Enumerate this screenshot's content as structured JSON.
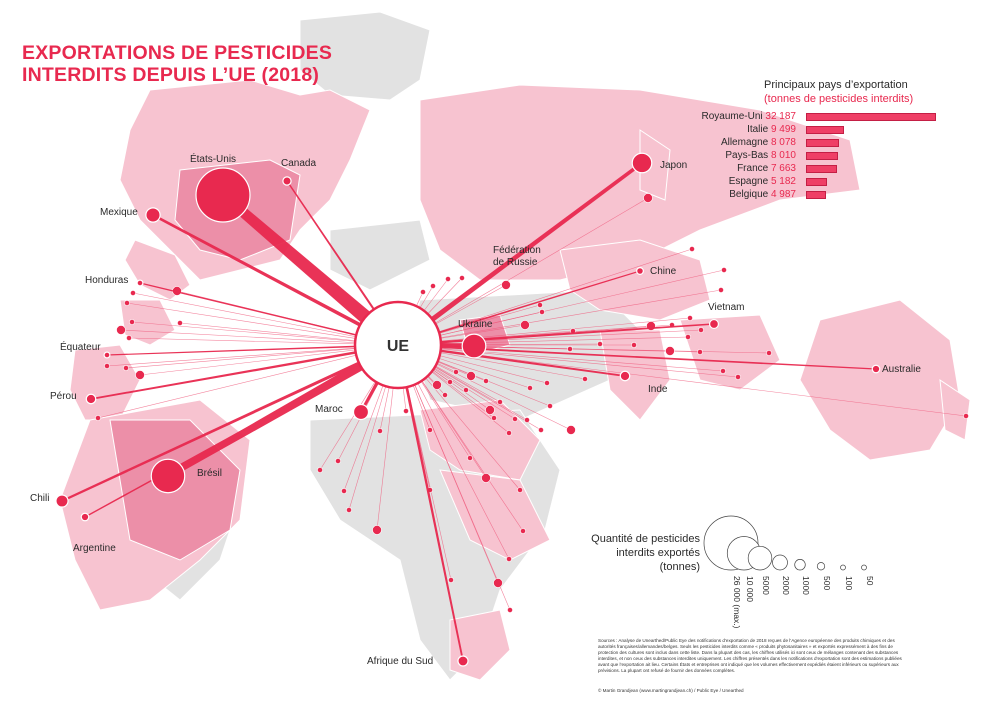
{
  "title": {
    "line1": "EXPORTATIONS DE PESTICIDES",
    "line2": "INTERDITS DEPUIS L’UE (2018)"
  },
  "hub": {
    "label": "UE"
  },
  "ranking": {
    "heading": "Principaux pays d’exportation",
    "subheading": "(tonnes de pesticides interdits)",
    "items": [
      {
        "country": "Royaume-Uni",
        "value": "32 187",
        "tonnes": 32187
      },
      {
        "country": "Italie",
        "value": "9 499",
        "tonnes": 9499
      },
      {
        "country": "Allemagne",
        "value": "8 078",
        "tonnes": 8078
      },
      {
        "country": "Pays-Bas",
        "value": "8 010",
        "tonnes": 8010
      },
      {
        "country": "France",
        "value": "7 663",
        "tonnes": 7663
      },
      {
        "country": "Espagne",
        "value": "5 182",
        "tonnes": 5182
      },
      {
        "country": "Belgique",
        "value": "4 987",
        "tonnes": 4987
      }
    ]
  },
  "destinations": [
    {
      "name": "États-Unis",
      "tonnes": 26000
    },
    {
      "name": "Brésil",
      "tonnes": 10000
    },
    {
      "name": "Ukraine",
      "tonnes": 5000
    },
    {
      "name": "Japon",
      "tonnes": 3400
    },
    {
      "name": "Maroc",
      "tonnes": 2000
    },
    {
      "name": "Mexique",
      "tonnes": 1800
    },
    {
      "name": "Chili",
      "tonnes": 1300
    },
    {
      "name": "Canada",
      "tonnes": 600
    },
    {
      "name": "Inde",
      "tonnes": 800
    },
    {
      "name": "Vietnam",
      "tonnes": 700
    },
    {
      "name": "Australie",
      "tonnes": 500
    },
    {
      "name": "Afrique du Sud",
      "tonnes": 900
    },
    {
      "name": "Argentine",
      "tonnes": 500
    },
    {
      "name": "Pérou",
      "tonnes": 800
    },
    {
      "name": "Équateur",
      "tonnes": 300
    },
    {
      "name": "Honduras",
      "tonnes": 300
    },
    {
      "name": "Chine",
      "tonnes": 400
    },
    {
      "name": "Fédération de Russie",
      "tonnes": 0
    }
  ],
  "legend": {
    "title": "Quantité de pesticides interdits exportés (tonnes)",
    "labels": [
      "26 000 (max.)",
      "10 000",
      "5000",
      "2000",
      "1000",
      "500",
      "100",
      "50"
    ]
  },
  "sources": "Sources : Analyse de Unearthed/Public Eye des notifications d’exportation de 2018 reçues de l’Agence européenne des produits chimiques et des autorités françaises/allemandes/belges. Seuls les pesticides interdits comme « produits phytosanitaires » et exportés expressément à des fins de protection des cultures sont inclus dans cette liste. Dans la plupart des cas, les chiffres utilisés ici sont ceux de mélanges contenant des substances interdites, et non ceux des substances interdites uniquement. Les chiffres présentés dans les notifications d’exportation sont des estimations publiées avant que l’exportation ait lieu. Certains États et entreprises ont indiqué que les volumes effectivement expédiés étaient inférieurs ou supérieurs aux prévisions. La plupart ont refusé de fournir des données complètes.",
  "credit": "© Martin Grandjean (www.martingrandjean.ch) / Public Eye / Unearthed",
  "colors": {
    "accent": "#e8294f",
    "land_exporting": "#f7c3d0",
    "land_major": "#eb8ea7",
    "land_other": "#e3e3e3"
  }
}
